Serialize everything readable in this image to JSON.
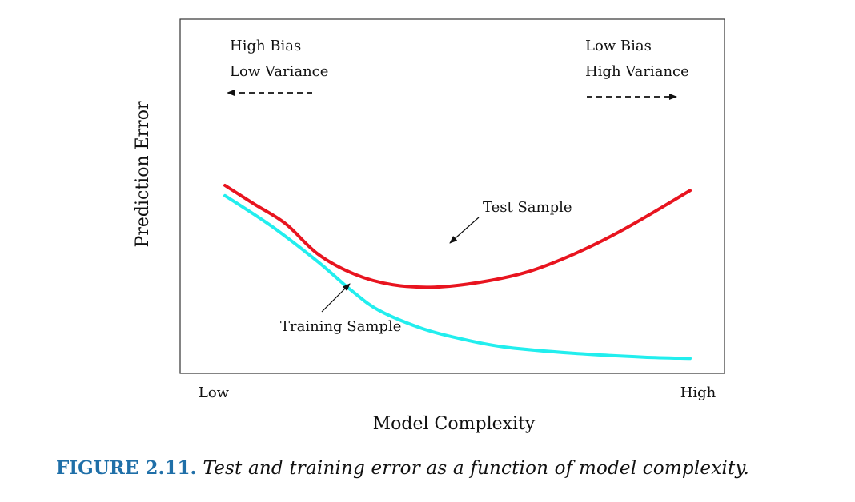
{
  "colors": {
    "test": "#e8141f",
    "training": "#22eeee",
    "frame": "#333333",
    "text": "#111111",
    "caption_label": "#1f6fa8"
  },
  "chart_data": {
    "type": "line",
    "title": "",
    "xlabel": "Model Complexity",
    "ylabel": "Prediction Error",
    "x_tick_labels": {
      "low": "Low",
      "high": "High"
    },
    "xlim": [
      0,
      1
    ],
    "ylim": [
      0,
      1
    ],
    "grid": false,
    "legend": "none",
    "series": [
      {
        "name": "Test Sample",
        "color_key": "test",
        "points": [
          [
            0.0,
            0.72
          ],
          [
            0.06,
            0.65
          ],
          [
            0.13,
            0.57
          ],
          [
            0.2,
            0.45
          ],
          [
            0.28,
            0.37
          ],
          [
            0.36,
            0.33
          ],
          [
            0.45,
            0.32
          ],
          [
            0.55,
            0.34
          ],
          [
            0.65,
            0.38
          ],
          [
            0.75,
            0.45
          ],
          [
            0.86,
            0.55
          ],
          [
            1.0,
            0.7
          ]
        ]
      },
      {
        "name": "Training Sample",
        "color_key": "training",
        "points": [
          [
            0.0,
            0.68
          ],
          [
            0.1,
            0.56
          ],
          [
            0.2,
            0.42
          ],
          [
            0.27,
            0.31
          ],
          [
            0.33,
            0.23
          ],
          [
            0.42,
            0.16
          ],
          [
            0.5,
            0.12
          ],
          [
            0.6,
            0.085
          ],
          [
            0.75,
            0.06
          ],
          [
            0.9,
            0.045
          ],
          [
            1.0,
            0.04
          ]
        ]
      }
    ],
    "annotations": {
      "left": {
        "line1": "High Bias",
        "line2": "Low Variance"
      },
      "right": {
        "line1": "Low Bias",
        "line2": "High Variance"
      }
    }
  },
  "caption": {
    "label": "FIGURE 2.11.",
    "text": "Test and training error as a function of model complexity."
  }
}
